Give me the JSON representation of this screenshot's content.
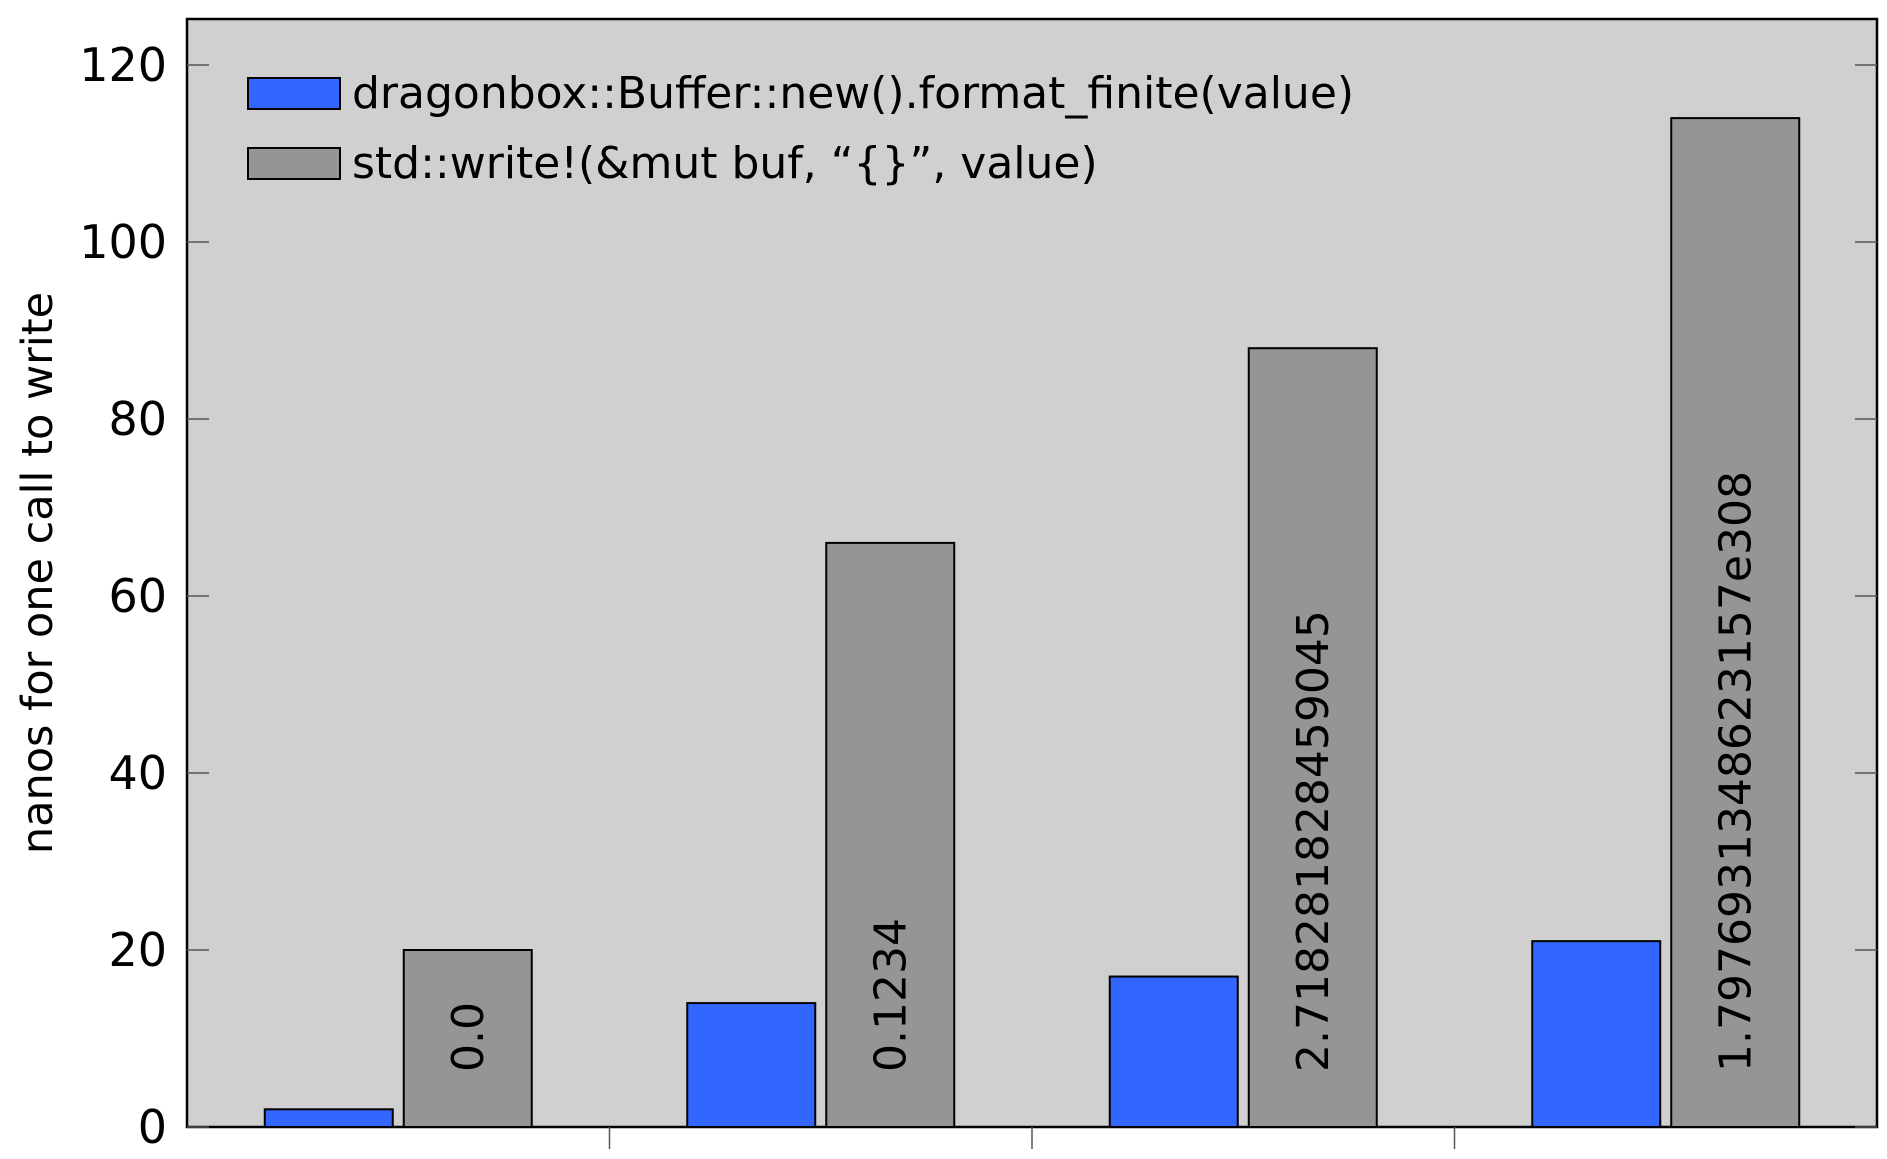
{
  "chart_data": {
    "type": "bar",
    "title": "",
    "xlabel": "",
    "ylabel": "nanos for one call to write",
    "ylim": [
      0,
      125
    ],
    "yticks": [
      0,
      20,
      40,
      60,
      80,
      100,
      120
    ],
    "grid": false,
    "legend_position": "top-left",
    "background_color": "#d0d0d0",
    "categories": [
      "0.0",
      "0.1234",
      "2.718281828459045",
      "1.7976931348623157e308"
    ],
    "series": [
      {
        "name": "dragonbox::Buffer::new().format_finite(value)",
        "color": "#3366ff",
        "values": [
          2,
          14,
          17,
          21
        ]
      },
      {
        "name": "std::write!(&mut buf, “{}”, value)",
        "color": "#959595",
        "values": [
          20,
          66,
          88,
          114
        ]
      }
    ]
  }
}
